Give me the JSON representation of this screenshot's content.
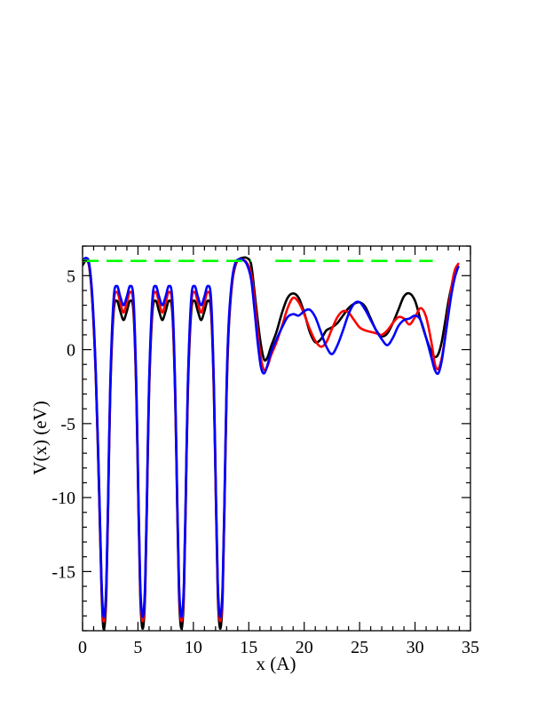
{
  "chart_data": {
    "type": "line",
    "title": "",
    "xlabel": "x (A)",
    "ylabel": "V(x) (eV)",
    "xlim": [
      0,
      35
    ],
    "ylim": [
      -19,
      7
    ],
    "xticks": [
      0,
      5,
      10,
      15,
      20,
      25,
      30,
      35
    ],
    "yticks": [
      -15,
      -10,
      -5,
      0,
      5
    ],
    "ytick_labels": [
      "-15",
      "-10",
      "-5",
      "0",
      "5"
    ],
    "grid": false,
    "legend": "none",
    "series": [
      {
        "color": "#000000",
        "x": [
          0,
          0.3,
          0.6,
          0.9,
          1.2,
          1.5,
          1.7,
          1.85,
          2.0,
          2.15,
          2.3,
          2.5,
          2.8,
          3.1,
          3.4,
          3.7,
          4.0,
          4.3,
          4.6,
          4.85,
          5.05,
          5.2,
          5.35,
          5.5,
          5.65,
          5.8,
          6.0,
          6.3,
          6.6,
          6.9,
          7.2,
          7.5,
          7.8,
          8.1,
          8.35,
          8.55,
          8.7,
          8.85,
          9.0,
          9.15,
          9.3,
          9.5,
          9.8,
          10.1,
          10.4,
          10.7,
          11.0,
          11.3,
          11.6,
          11.85,
          12.05,
          12.2,
          12.35,
          12.5,
          12.65,
          12.8,
          13.0,
          13.2,
          13.5,
          13.8,
          14.1,
          14.4,
          14.8,
          15.2,
          15.5,
          15.8,
          16.1,
          16.4,
          16.7,
          17.0,
          17.5,
          18.0,
          18.5,
          19.0,
          19.5,
          20.0,
          20.5,
          21.0,
          21.5,
          22.0,
          22.5,
          23.0,
          23.5,
          24.0,
          24.5,
          25.0,
          25.5,
          26.0,
          26.5,
          27.0,
          27.5,
          28.0,
          28.5,
          29.0,
          29.5,
          30.0,
          30.5,
          31.0,
          31.5,
          31.8,
          32.1,
          32.4,
          32.7,
          33.0,
          33.3,
          33.6,
          33.9
        ],
        "y": [
          5.7,
          6.0,
          5.6,
          3.0,
          -2.0,
          -10.0,
          -16.0,
          -18.6,
          -18.6,
          -16.5,
          -11.0,
          -3.0,
          2.5,
          3.3,
          2.6,
          2.0,
          2.6,
          3.3,
          2.5,
          -3.0,
          -11.0,
          -16.5,
          -18.6,
          -18.6,
          -16.5,
          -11.0,
          -3.0,
          2.5,
          3.3,
          2.6,
          2.0,
          2.6,
          3.3,
          2.5,
          -3.0,
          -11.0,
          -16.5,
          -18.6,
          -18.6,
          -16.5,
          -11.0,
          -3.0,
          2.5,
          3.3,
          2.6,
          2.0,
          2.6,
          3.3,
          2.5,
          -3.0,
          -11.0,
          -16.5,
          -18.6,
          -18.6,
          -16.5,
          -11.0,
          -3.0,
          1.5,
          4.5,
          5.7,
          6.1,
          6.2,
          6.2,
          5.8,
          4.0,
          2.0,
          0.3,
          -0.7,
          -0.5,
          0.2,
          1.2,
          2.5,
          3.5,
          3.8,
          3.5,
          2.5,
          1.2,
          0.5,
          0.7,
          1.3,
          1.5,
          1.8,
          2.3,
          2.8,
          3.1,
          3.2,
          2.9,
          2.1,
          1.3,
          0.9,
          1.1,
          1.8,
          2.7,
          3.6,
          3.8,
          3.3,
          2.0,
          0.8,
          -0.2,
          -0.5,
          -0.3,
          0.5,
          1.8,
          3.2,
          4.3,
          5.1,
          5.6
        ]
      },
      {
        "color": "#ff0000",
        "x": [
          0,
          0.3,
          0.6,
          0.9,
          1.2,
          1.5,
          1.7,
          1.85,
          2.0,
          2.15,
          2.3,
          2.5,
          2.8,
          3.1,
          3.4,
          3.7,
          4.0,
          4.3,
          4.6,
          4.85,
          5.05,
          5.2,
          5.35,
          5.5,
          5.65,
          5.8,
          6.0,
          6.3,
          6.6,
          6.9,
          7.2,
          7.5,
          7.8,
          8.1,
          8.35,
          8.55,
          8.7,
          8.85,
          9.0,
          9.15,
          9.3,
          9.5,
          9.8,
          10.1,
          10.4,
          10.7,
          11.0,
          11.3,
          11.6,
          11.85,
          12.05,
          12.2,
          12.35,
          12.5,
          12.65,
          12.8,
          13.0,
          13.2,
          13.5,
          13.8,
          14.1,
          14.4,
          14.8,
          15.2,
          15.5,
          15.8,
          16.1,
          16.4,
          16.7,
          17.0,
          17.5,
          18.0,
          18.5,
          19.0,
          19.5,
          20.0,
          20.5,
          21.0,
          21.5,
          22.0,
          22.5,
          23.0,
          23.5,
          24.0,
          24.5,
          25.0,
          25.5,
          26.0,
          26.5,
          27.0,
          27.5,
          28.0,
          28.5,
          29.0,
          29.5,
          30.0,
          30.5,
          31.0,
          31.5,
          31.8,
          32.1,
          32.4,
          32.7,
          33.0,
          33.3,
          33.6,
          33.9
        ],
        "y": [
          5.9,
          6.1,
          5.7,
          3.2,
          -1.8,
          -9.6,
          -15.6,
          -18.1,
          -18.1,
          -16.0,
          -10.6,
          -2.6,
          3.0,
          3.9,
          3.2,
          2.5,
          3.2,
          3.9,
          3.0,
          -2.6,
          -10.6,
          -16.0,
          -18.1,
          -18.1,
          -16.0,
          -10.6,
          -2.6,
          3.0,
          3.9,
          3.2,
          2.5,
          3.2,
          3.9,
          3.0,
          -2.6,
          -10.6,
          -16.0,
          -18.1,
          -18.1,
          -16.0,
          -10.6,
          -2.6,
          3.0,
          3.9,
          3.2,
          2.5,
          3.2,
          3.9,
          3.0,
          -2.6,
          -10.6,
          -16.0,
          -18.1,
          -18.1,
          -16.0,
          -10.6,
          -2.6,
          1.8,
          4.6,
          5.8,
          6.1,
          6.1,
          5.9,
          5.2,
          3.5,
          1.2,
          -0.6,
          -1.4,
          -1.1,
          -0.4,
          0.5,
          1.6,
          2.8,
          3.5,
          3.2,
          2.4,
          1.4,
          0.6,
          0.2,
          0.5,
          1.4,
          2.2,
          2.6,
          2.5,
          2.0,
          1.5,
          1.3,
          1.2,
          1.1,
          1.0,
          1.3,
          1.8,
          2.2,
          2.1,
          1.7,
          2.2,
          2.8,
          2.2,
          0.4,
          -1.0,
          -1.3,
          -0.6,
          0.8,
          2.6,
          4.3,
          5.4,
          5.8
        ]
      },
      {
        "color": "#0000ff",
        "x": [
          0,
          0.3,
          0.6,
          0.9,
          1.2,
          1.5,
          1.7,
          1.85,
          2.0,
          2.15,
          2.3,
          2.5,
          2.8,
          3.1,
          3.4,
          3.7,
          4.0,
          4.3,
          4.6,
          4.85,
          5.05,
          5.2,
          5.35,
          5.5,
          5.65,
          5.8,
          6.0,
          6.3,
          6.6,
          6.9,
          7.2,
          7.5,
          7.8,
          8.1,
          8.35,
          8.55,
          8.7,
          8.85,
          9.0,
          9.15,
          9.3,
          9.5,
          9.8,
          10.1,
          10.4,
          10.7,
          11.0,
          11.3,
          11.6,
          11.85,
          12.05,
          12.2,
          12.35,
          12.5,
          12.65,
          12.8,
          13.0,
          13.2,
          13.5,
          13.8,
          14.1,
          14.4,
          14.8,
          15.2,
          15.5,
          15.8,
          16.1,
          16.4,
          16.7,
          17.0,
          17.5,
          18.0,
          18.5,
          19.0,
          19.5,
          20.0,
          20.5,
          21.0,
          21.5,
          22.0,
          22.5,
          23.0,
          23.5,
          24.0,
          24.5,
          25.0,
          25.5,
          26.0,
          26.5,
          27.0,
          27.5,
          28.0,
          28.5,
          29.0,
          29.5,
          30.0,
          30.5,
          31.0,
          31.5,
          31.8,
          32.1,
          32.4,
          32.7,
          33.0,
          33.3,
          33.6,
          33.9
        ],
        "y": [
          6.0,
          6.2,
          5.8,
          3.4,
          -1.6,
          -9.3,
          -15.3,
          -17.8,
          -17.8,
          -15.7,
          -10.3,
          -2.3,
          3.4,
          4.3,
          3.6,
          3.0,
          3.6,
          4.3,
          3.4,
          -2.3,
          -10.3,
          -15.7,
          -17.8,
          -17.8,
          -15.7,
          -10.3,
          -2.3,
          3.4,
          4.3,
          3.6,
          3.0,
          3.6,
          4.3,
          3.4,
          -2.3,
          -10.3,
          -15.7,
          -17.8,
          -17.8,
          -15.7,
          -10.3,
          -2.3,
          3.4,
          4.3,
          3.6,
          3.0,
          3.6,
          4.3,
          3.4,
          -2.3,
          -10.3,
          -15.7,
          -17.8,
          -17.8,
          -15.7,
          -10.3,
          -2.3,
          2.0,
          4.8,
          5.9,
          6.1,
          6.1,
          5.8,
          4.8,
          2.8,
          0.5,
          -1.2,
          -1.6,
          -1.0,
          -0.2,
          0.7,
          1.5,
          2.2,
          2.4,
          2.3,
          2.6,
          2.7,
          2.2,
          1.2,
          0.2,
          -0.3,
          0.3,
          1.3,
          2.4,
          3.1,
          3.2,
          2.7,
          2.0,
          1.3,
          0.7,
          0.3,
          0.8,
          1.6,
          2.0,
          2.1,
          2.3,
          2.0,
          0.8,
          -0.6,
          -1.4,
          -1.6,
          -0.8,
          0.7,
          2.3,
          3.8,
          4.9,
          5.6
        ]
      },
      {
        "color": "#00ff00",
        "style": "dashed",
        "x": [
          0,
          15.2,
          17.4,
          31.6
        ],
        "y": [
          6.0,
          6.0,
          6.0,
          6.0
        ],
        "segments": [
          [
            0,
            15.2
          ],
          [
            17.4,
            31.6
          ]
        ]
      }
    ]
  }
}
